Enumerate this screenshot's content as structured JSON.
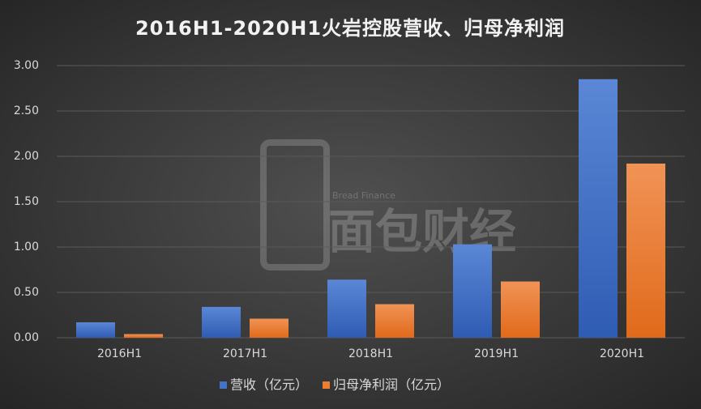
{
  "chart_data": {
    "type": "bar",
    "title": "2016H1-2020H1火岩控股营收、归母净利润",
    "watermark": [
      "Bread Finance",
      "面包财经"
    ],
    "categories": [
      "2016H1",
      "2017H1",
      "2018H1",
      "2019H1",
      "2020H1"
    ],
    "series": [
      {
        "name": "营收（亿元）",
        "color": "#4472c4",
        "values": [
          0.17,
          0.34,
          0.64,
          1.03,
          2.85
        ]
      },
      {
        "name": "归母净利润（亿元）",
        "color": "#ed7d31",
        "values": [
          0.04,
          0.21,
          0.37,
          0.62,
          1.92
        ]
      }
    ],
    "ylim": [
      0,
      3
    ],
    "yticks": [
      {
        "value": 0,
        "label": "0.00"
      },
      {
        "value": 0.5,
        "label": "0.50"
      },
      {
        "value": 1,
        "label": "1.00"
      },
      {
        "value": 1.5,
        "label": "1.50"
      },
      {
        "value": 2,
        "label": "2.00"
      },
      {
        "value": 2.5,
        "label": "2.50"
      },
      {
        "value": 3,
        "label": "3.00"
      }
    ],
    "grid": true,
    "legend": "bottom"
  }
}
